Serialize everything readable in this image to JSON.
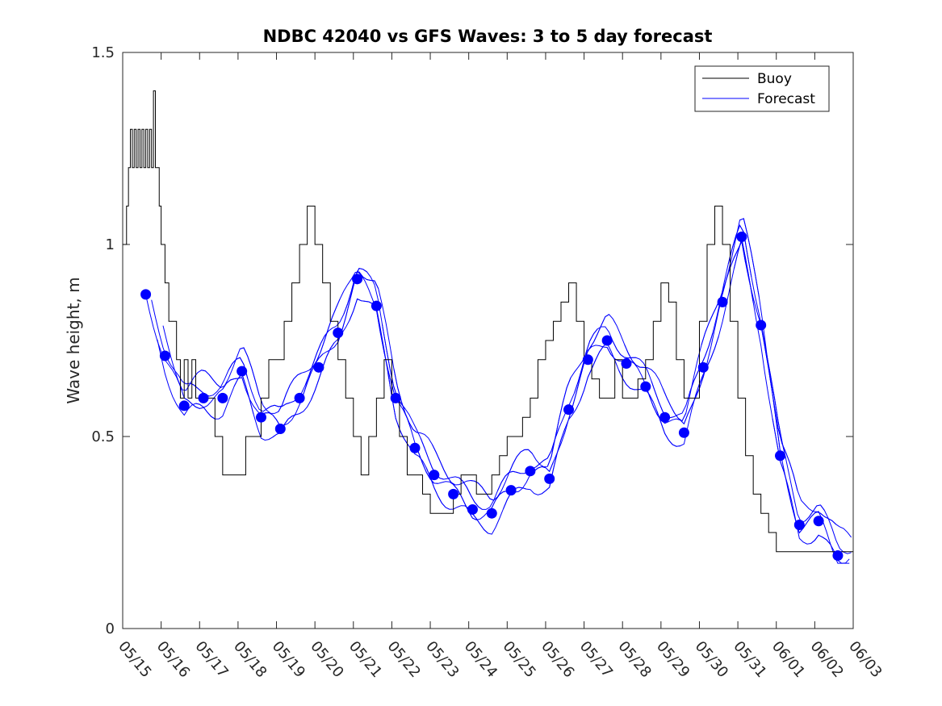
{
  "chart_data": {
    "type": "line",
    "title": "NDBC 42040 vs GFS Waves: 3 to 5 day forecast",
    "xlabel": "",
    "ylabel": "Wave height, m",
    "xlim": [
      "05/15",
      "06/03"
    ],
    "ylim": [
      0,
      1.5
    ],
    "yticks": [
      0,
      0.5,
      1,
      1.5
    ],
    "ytick_labels": [
      "0",
      "0.5",
      "1",
      "1.5"
    ],
    "xtick_labels": [
      "05/15",
      "05/16",
      "05/17",
      "05/18",
      "05/19",
      "05/20",
      "05/21",
      "05/22",
      "05/23",
      "05/24",
      "05/25",
      "05/26",
      "05/27",
      "05/28",
      "05/29",
      "05/30",
      "05/31",
      "06/01",
      "06/02",
      "06/03"
    ],
    "legend": {
      "placement": "top-right",
      "entries": [
        "Buoy",
        "Forecast"
      ]
    },
    "colors": {
      "buoy": "#000000",
      "forecast": "#0000ff",
      "markers": "#0000ff"
    },
    "series": [
      {
        "name": "Buoy",
        "x": [
          0.0,
          0.1,
          0.15,
          0.2,
          0.25,
          0.3,
          0.35,
          0.4,
          0.45,
          0.5,
          0.55,
          0.6,
          0.65,
          0.7,
          0.75,
          0.8,
          0.85,
          0.9,
          0.95,
          1.0,
          1.1,
          1.2,
          1.3,
          1.4,
          1.5,
          1.6,
          1.7,
          1.8,
          1.9,
          2.0,
          2.2,
          2.4,
          2.6,
          2.8,
          3.0,
          3.2,
          3.4,
          3.6,
          3.8,
          4.0,
          4.2,
          4.4,
          4.6,
          4.8,
          5.0,
          5.2,
          5.4,
          5.6,
          5.8,
          6.0,
          6.2,
          6.4,
          6.6,
          6.8,
          7.0,
          7.2,
          7.4,
          7.6,
          7.8,
          8.0,
          8.2,
          8.4,
          8.6,
          8.8,
          9.0,
          9.2,
          9.4,
          9.6,
          9.8,
          10.0,
          10.2,
          10.4,
          10.6,
          10.8,
          11.0,
          11.2,
          11.4,
          11.6,
          11.8,
          12.0,
          12.2,
          12.4,
          12.6,
          12.8,
          13.0,
          13.2,
          13.4,
          13.6,
          13.8,
          14.0,
          14.2,
          14.4,
          14.6,
          14.8,
          15.0,
          15.2,
          15.4,
          15.6,
          15.8,
          16.0,
          16.2,
          16.4,
          16.6,
          16.8,
          17.0,
          17.2,
          17.4,
          17.6,
          17.8,
          18.0,
          18.2,
          18.4,
          18.6,
          18.8,
          19.0
        ],
        "values": [
          1.0,
          1.1,
          1.2,
          1.3,
          1.2,
          1.3,
          1.2,
          1.3,
          1.2,
          1.3,
          1.2,
          1.3,
          1.2,
          1.3,
          1.2,
          1.4,
          1.2,
          1.2,
          1.1,
          1.0,
          0.9,
          0.8,
          0.8,
          0.7,
          0.6,
          0.7,
          0.6,
          0.7,
          0.6,
          0.6,
          0.6,
          0.5,
          0.4,
          0.4,
          0.4,
          0.5,
          0.5,
          0.6,
          0.7,
          0.7,
          0.8,
          0.9,
          1.0,
          1.1,
          1.0,
          0.9,
          0.8,
          0.7,
          0.6,
          0.5,
          0.4,
          0.5,
          0.6,
          0.7,
          0.6,
          0.5,
          0.4,
          0.4,
          0.35,
          0.3,
          0.3,
          0.3,
          0.35,
          0.4,
          0.4,
          0.35,
          0.35,
          0.4,
          0.45,
          0.5,
          0.5,
          0.55,
          0.6,
          0.7,
          0.75,
          0.8,
          0.85,
          0.9,
          0.8,
          0.7,
          0.65,
          0.6,
          0.6,
          0.7,
          0.6,
          0.6,
          0.65,
          0.7,
          0.8,
          0.9,
          0.85,
          0.7,
          0.6,
          0.6,
          0.8,
          1.0,
          1.1,
          1.0,
          0.8,
          0.6,
          0.45,
          0.35,
          0.3,
          0.25,
          0.2,
          0.2,
          0.2,
          0.2,
          0.2,
          0.2,
          0.2,
          0.2,
          0.2,
          0.2,
          0.2
        ]
      },
      {
        "name": "Forecast",
        "markers_x": [
          0.6,
          1.1,
          1.6,
          2.1,
          2.6,
          3.1,
          3.6,
          4.1,
          4.6,
          5.1,
          5.6,
          6.1,
          6.6,
          7.1,
          7.6,
          8.1,
          8.6,
          9.1,
          9.6,
          10.1,
          10.6,
          11.1,
          11.6,
          12.1,
          12.6,
          13.1,
          13.6,
          14.1,
          14.6,
          15.1,
          15.6,
          16.1,
          16.6,
          17.1,
          17.6,
          18.1,
          18.6
        ],
        "markers_y": [
          0.87,
          0.71,
          0.58,
          0.6,
          0.6,
          0.67,
          0.55,
          0.52,
          0.6,
          0.68,
          0.77,
          0.91,
          0.84,
          0.6,
          0.47,
          0.4,
          0.35,
          0.31,
          0.3,
          0.36,
          0.41,
          0.39,
          0.57,
          0.7,
          0.75,
          0.69,
          0.63,
          0.55,
          0.51,
          0.68,
          0.85,
          1.02,
          0.79,
          0.45,
          0.27,
          0.28,
          0.19
        ]
      }
    ]
  }
}
